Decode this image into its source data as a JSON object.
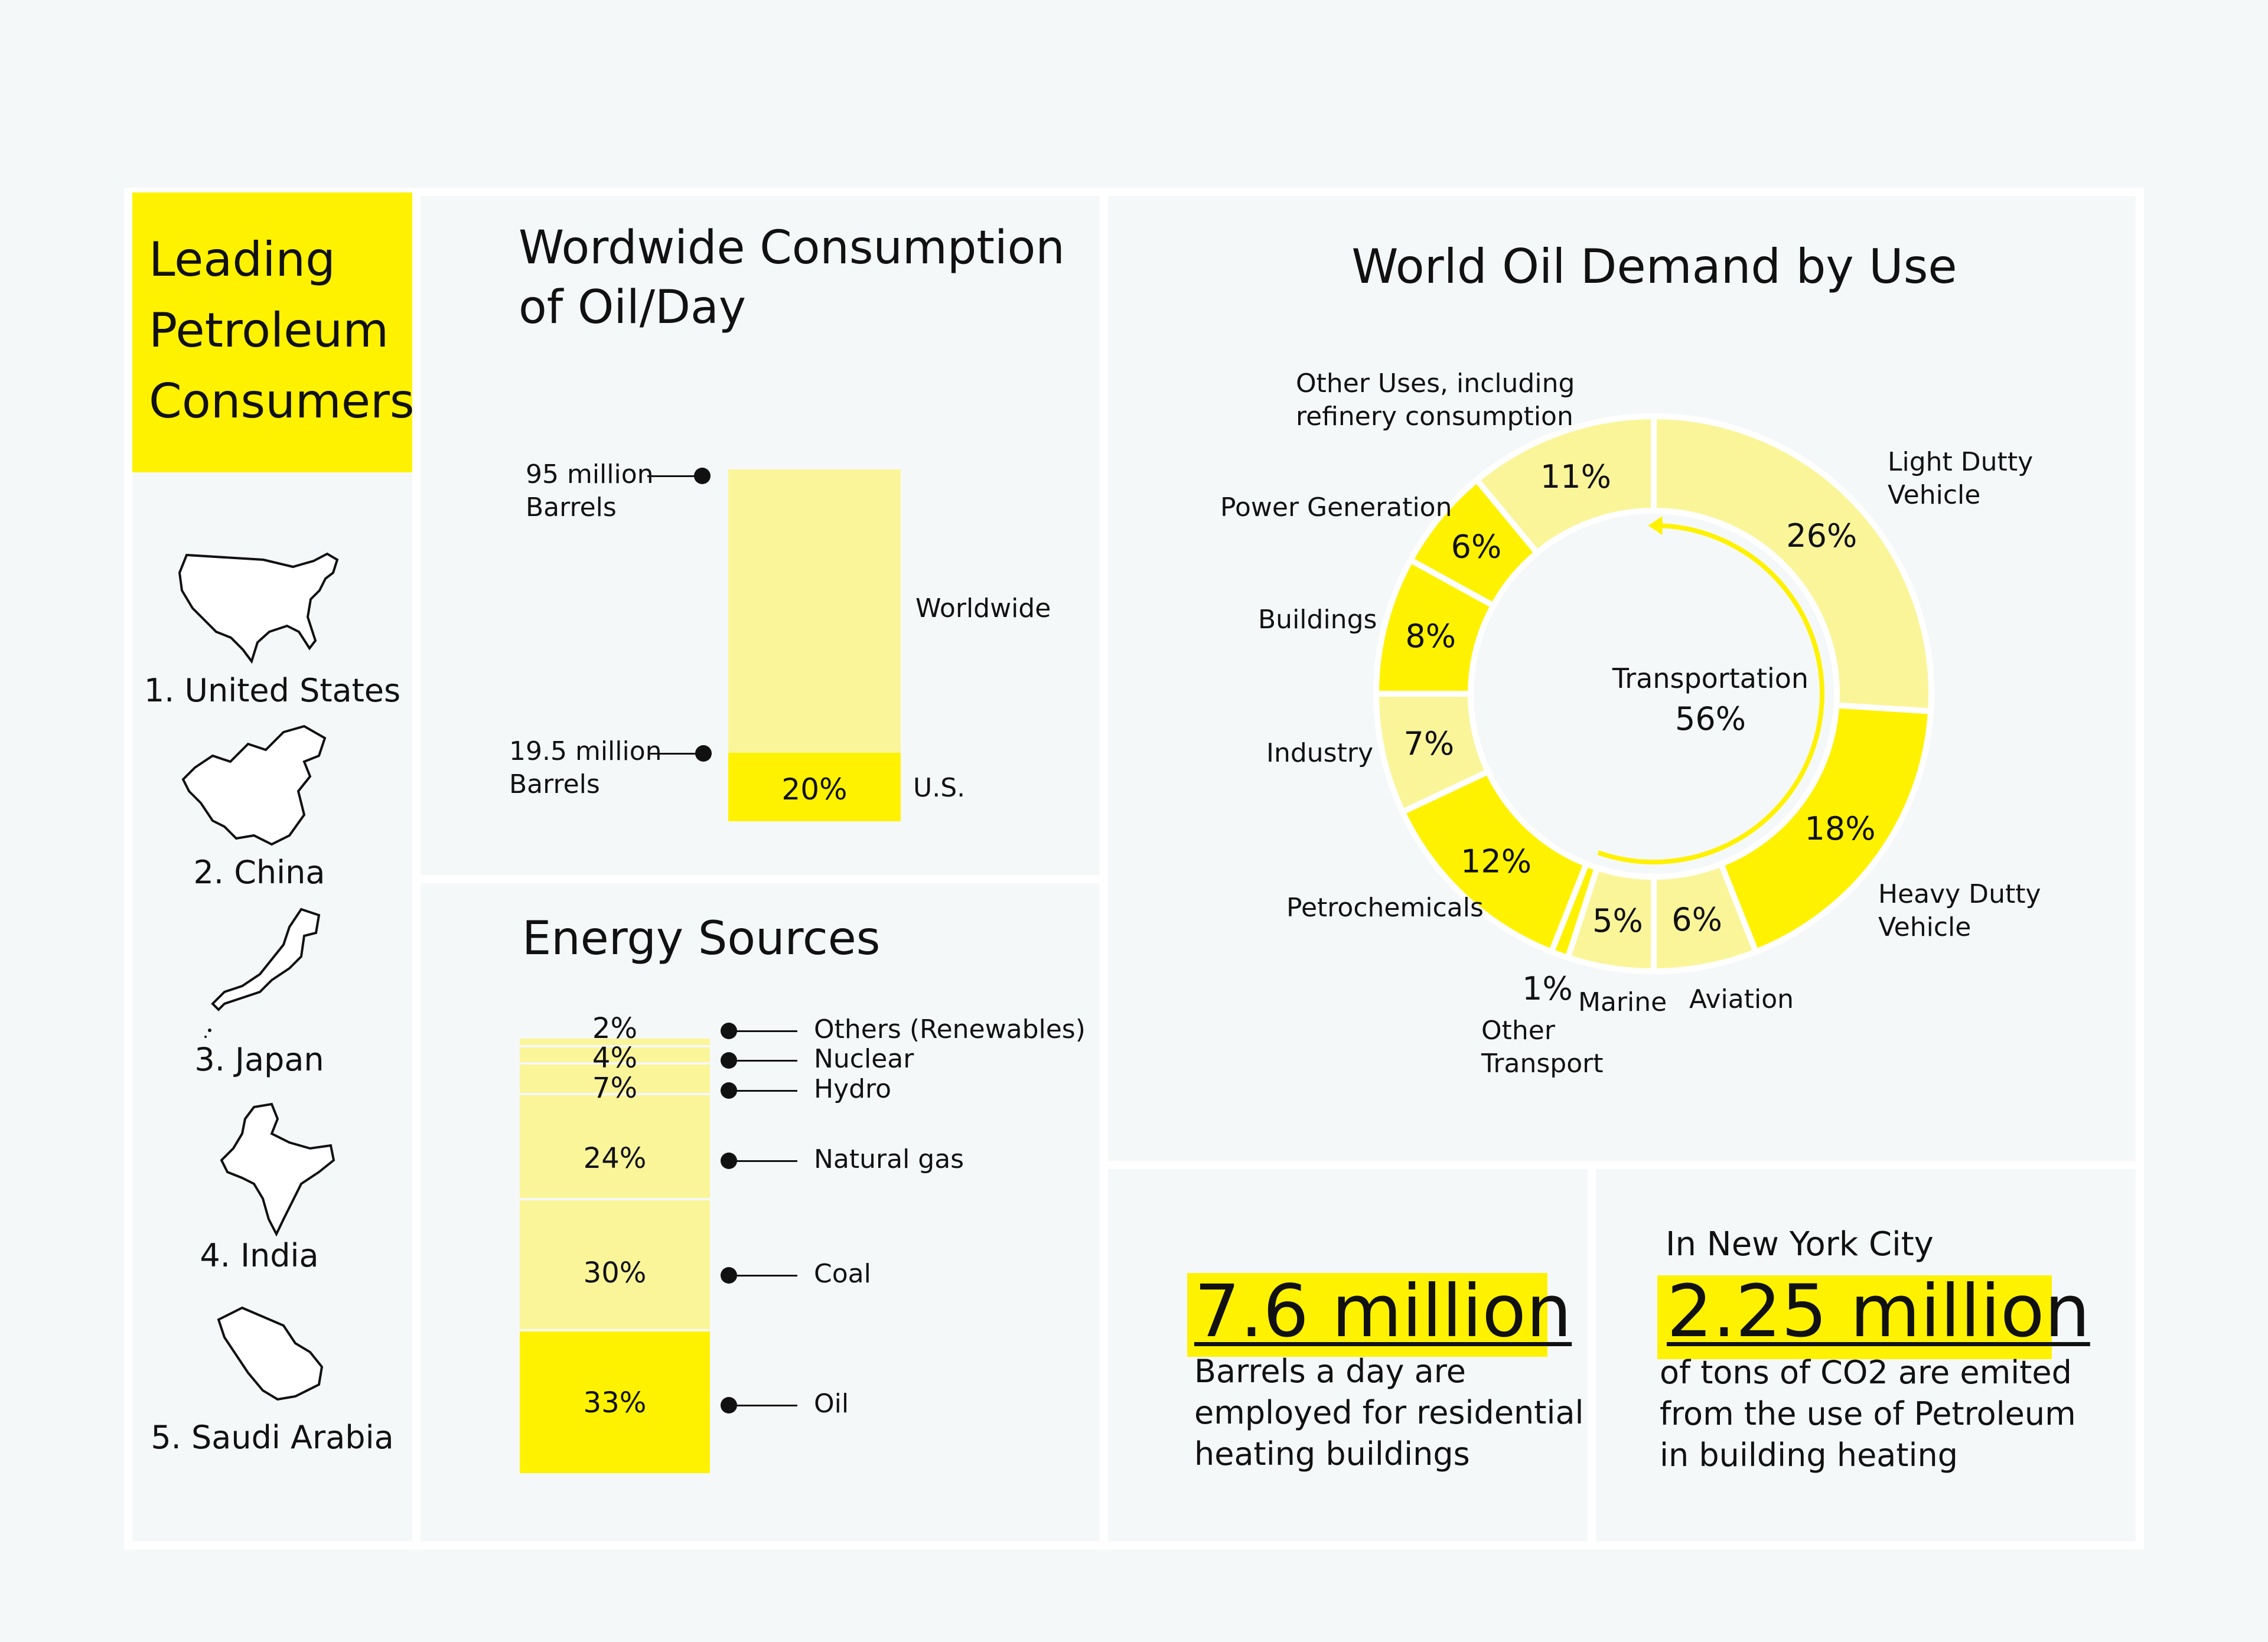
{
  "colors": {
    "bright_yellow": "#fff200",
    "pale_yellow": "#fbf59a",
    "background": "#f5f8f9",
    "divider": "#ffffff",
    "ink": "#111111"
  },
  "consumers": {
    "title": "Leading\nPetroleum\nConsumers",
    "items": [
      {
        "rank_label": "1. United States",
        "icon": "usa-map-icon"
      },
      {
        "rank_label": "2. China",
        "icon": "china-map-icon"
      },
      {
        "rank_label": "3. Japan",
        "icon": "japan-map-icon"
      },
      {
        "rank_label": "4. India",
        "icon": "india-map-icon"
      },
      {
        "rank_label": "5. Saudi Arabia",
        "icon": "saudi-arabia-map-icon"
      }
    ]
  },
  "consumption": {
    "title": "Wordwide Consumption\nof Oil/Day",
    "chart_data": {
      "type": "bar",
      "categories": [
        "Worldwide",
        "U.S."
      ],
      "values": [
        95,
        19.5
      ],
      "unit": "million Barrels",
      "worldwide_annotation": "95 million\nBarrels",
      "us_annotation": "19.5 million\nBarrels",
      "us_share_label": "20%",
      "worldwide_label": "Worldwide",
      "us_label": "U.S."
    }
  },
  "energy": {
    "title": "Energy Sources",
    "chart_data": {
      "type": "bar",
      "stacked": true,
      "segments": [
        {
          "name": "Oil",
          "value": 33,
          "label": "33%",
          "color": "#fff200"
        },
        {
          "name": "Coal",
          "value": 30,
          "label": "30%",
          "color": "#fbf59a"
        },
        {
          "name": "Natural gas",
          "value": 24,
          "label": "24%",
          "color": "#fbf59a"
        },
        {
          "name": "Hydro",
          "value": 7,
          "label": "7%",
          "color": "#fbf59a"
        },
        {
          "name": "Nuclear",
          "value": 4,
          "label": "4%",
          "color": "#fbf59a"
        },
        {
          "name": "Others (Renewables)",
          "value": 2,
          "label": "2%",
          "color": "#fbf59a"
        }
      ]
    }
  },
  "demand": {
    "title": "World Oil Demand by Use",
    "center_label": "Transportation",
    "center_value": "56%",
    "chart_data": {
      "type": "pie",
      "donut": true,
      "slices": [
        {
          "name": "Light Dutty Vehicle",
          "value": 26,
          "label": "26%",
          "color": "#fbf59a"
        },
        {
          "name": "Heavy Dutty Vehicle",
          "value": 18,
          "label": "18%",
          "color": "#fff200"
        },
        {
          "name": "Aviation",
          "value": 6,
          "label": "6%",
          "color": "#fbf59a"
        },
        {
          "name": "Marine",
          "value": 5,
          "label": "5%",
          "color": "#fbf59a"
        },
        {
          "name": "Other Transport",
          "value": 1,
          "label": "1%",
          "color": "#fff200"
        },
        {
          "name": "Petrochemicals",
          "value": 12,
          "label": "12%",
          "color": "#fff200"
        },
        {
          "name": "Industry",
          "value": 7,
          "label": "7%",
          "color": "#fbf59a"
        },
        {
          "name": "Buildings",
          "value": 8,
          "label": "8%",
          "color": "#fff200"
        },
        {
          "name": "Power Generation",
          "value": 6,
          "label": "6%",
          "color": "#fff200"
        },
        {
          "name": "Other Uses, including refinery consumption",
          "value": 11,
          "label": "11%",
          "color": "#fbf59a"
        }
      ],
      "outer_labels": {
        "light": "Light Dutty\nVehicle",
        "heavy": "Heavy Dutty\nVehicle",
        "aviation": "Aviation",
        "marine": "Marine",
        "other_transport": "Other\nTransport",
        "petro": "Petrochemicals",
        "industry": "Industry",
        "buildings": "Buildings",
        "power": "Power Generation",
        "other_uses": "Other Uses, including\nrefinery consumption"
      }
    }
  },
  "stat_residential": {
    "number": "7.6 million",
    "text": "Barrels a day are\nemployed for residential\nheating buildings"
  },
  "stat_nyc": {
    "heading": "In New York City",
    "number": "2.25 million",
    "text": "of tons of CO2 are emited\nfrom the use of Petroleum\nin building heating"
  }
}
